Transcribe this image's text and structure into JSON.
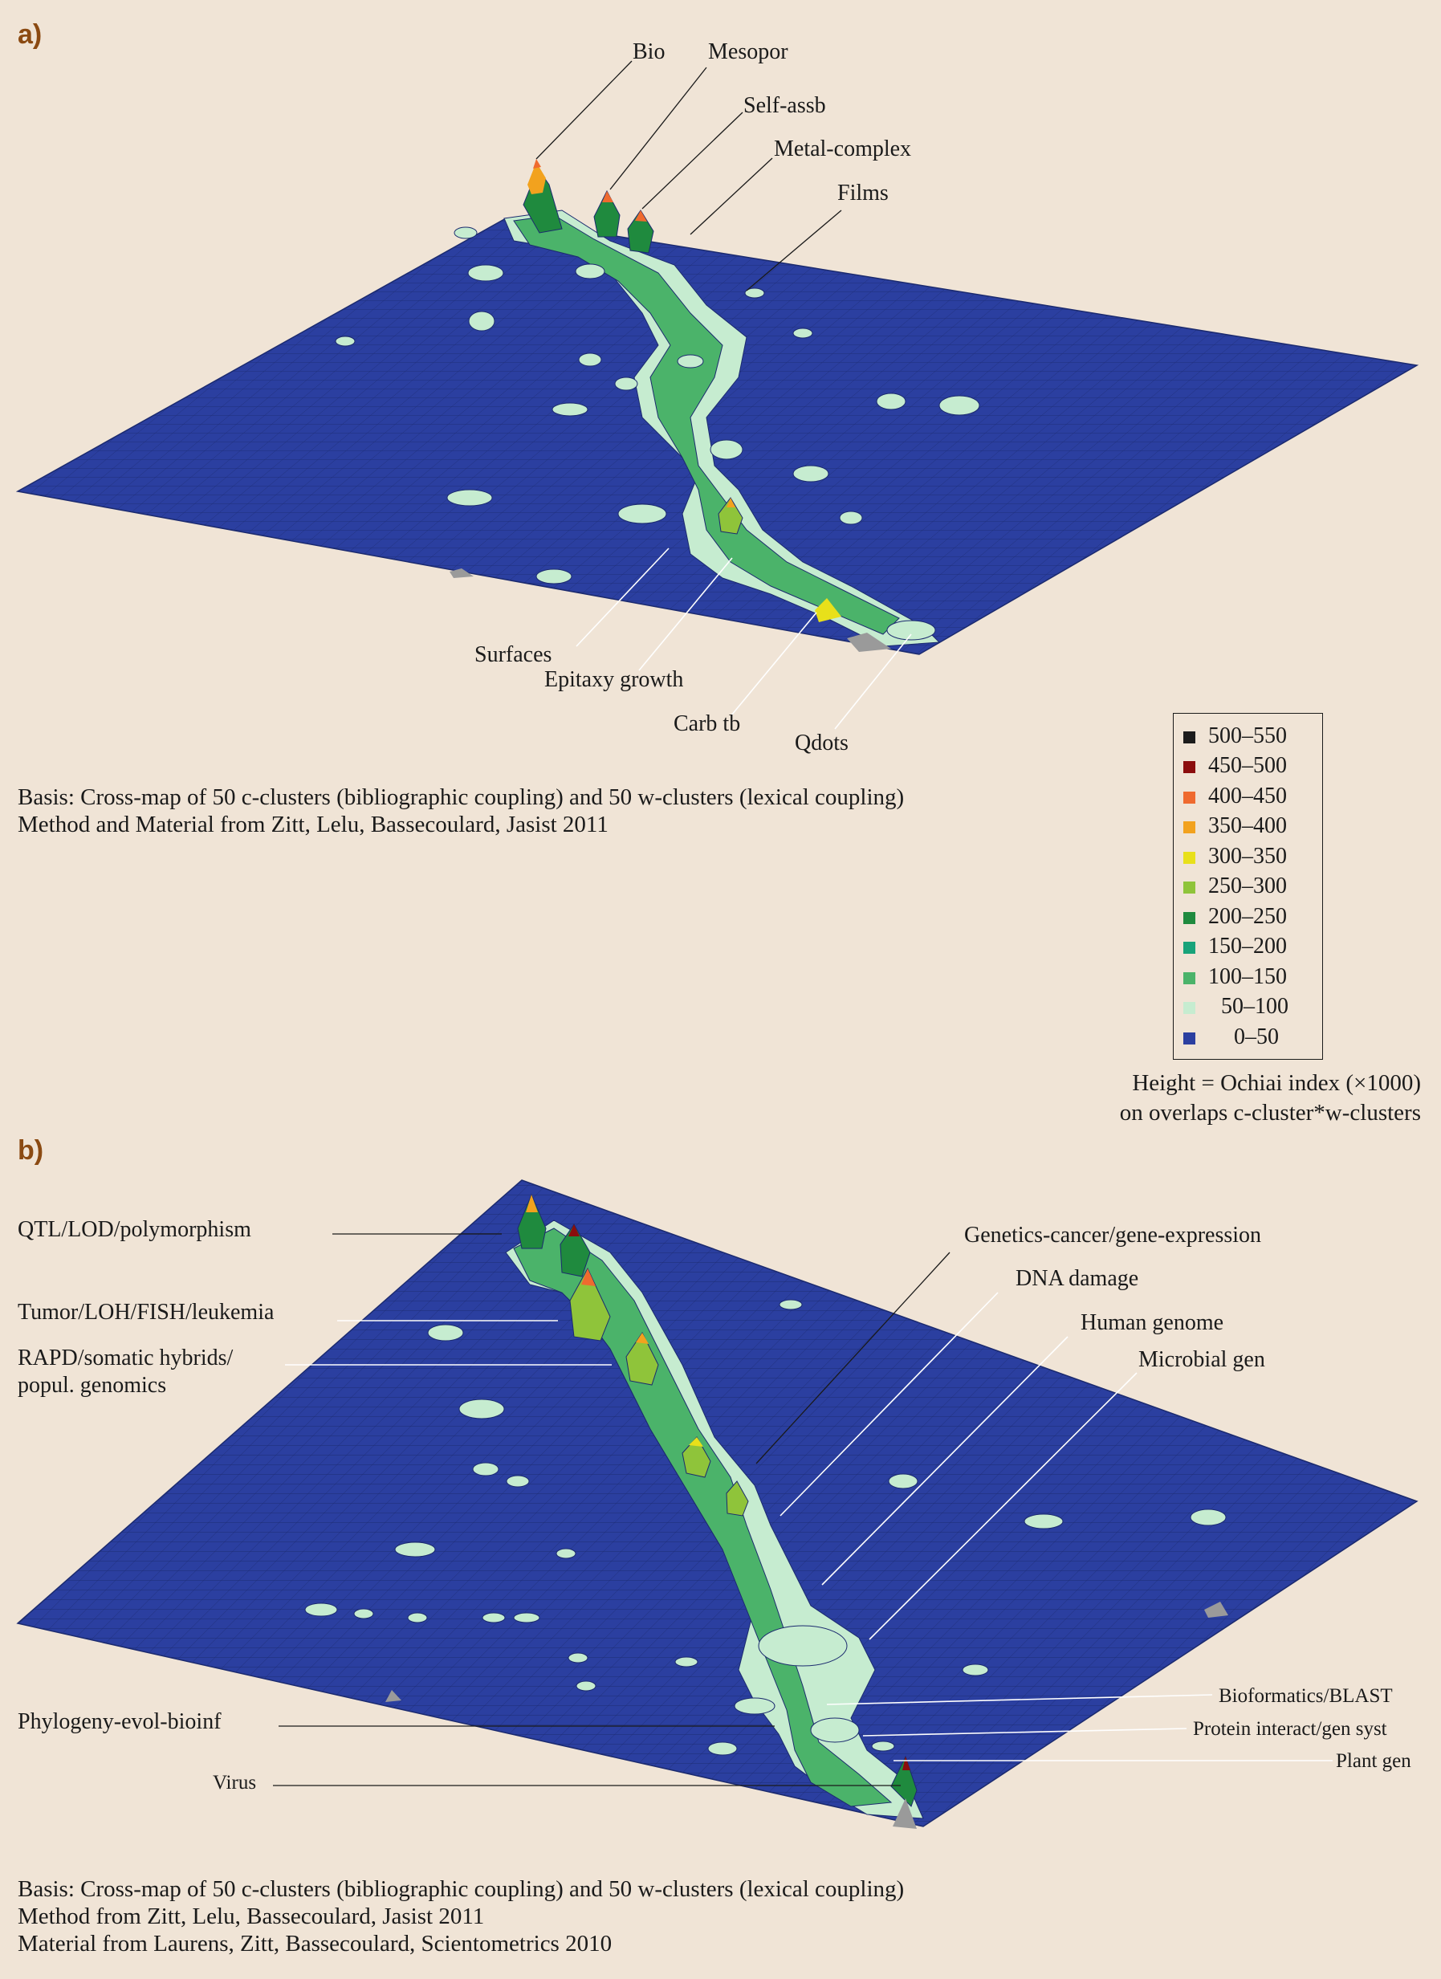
{
  "colors": {
    "background": "#f0e4d6",
    "surface": "#2b3fa0",
    "grid": "#1b2a6e",
    "panel_letter": "#8b4a12"
  },
  "panel_a": {
    "letter": "a)",
    "labels": [
      "Bio",
      "Mesopor",
      "Self-assb",
      "Metal-complex",
      "Films",
      "Surfaces",
      "Epitaxy growth",
      "Carb tb",
      "Qdots"
    ],
    "basis_line1": "Basis: Cross-map of 50 c-clusters (bibliographic coupling) and 50 w-clusters (lexical coupling)",
    "basis_line2": "Method and Material from Zitt, Lelu, Bassecoulard, Jasist 2011"
  },
  "legend": {
    "items": [
      {
        "range": "500–550",
        "color": "#1c1c1c"
      },
      {
        "range": "450–500",
        "color": "#8b0d0d"
      },
      {
        "range": "400–450",
        "color": "#ef6a2f"
      },
      {
        "range": "350–400",
        "color": "#f2a21e"
      },
      {
        "range": "300–350",
        "color": "#e8e01a"
      },
      {
        "range": "250–300",
        "color": "#8fc43a"
      },
      {
        "range": "200–250",
        "color": "#1f8a3e"
      },
      {
        "range": "150–200",
        "color": "#18a37a"
      },
      {
        "range": "100–150",
        "color": "#4bb36a"
      },
      {
        "range": "50–100",
        "color": "#c6ecd0"
      },
      {
        "range": "0–50",
        "color": "#2b3fa0"
      }
    ],
    "caption_line1": "Height = Ochiai index (×1000)",
    "caption_line2": "on overlaps c-cluster*w-clusters"
  },
  "panel_b": {
    "letter": "b)",
    "labels": [
      "QTL/LOD/polymorphism",
      "Tumor/LOH/FISH/leukemia",
      "RAPD/somatic hybrids/",
      "popul. genomics",
      "Genetics-cancer/gene-expression",
      "DNA damage",
      "Human genome",
      "Microbial gen",
      "Bioformatics/BLAST",
      "Protein interact/gen syst",
      "Plant gen",
      "Phylogeny-evol-bioinf",
      "Virus"
    ],
    "basis_line1": "Basis: Cross-map of 50 c-clusters (bibliographic coupling) and 50 w-clusters (lexical coupling)",
    "basis_line2": "Method from Zitt, Lelu, Bassecoulard, Jasist 2011",
    "basis_line3": "Material from Laurens, Zitt, Bassecoulard, Scientometrics 2010"
  }
}
